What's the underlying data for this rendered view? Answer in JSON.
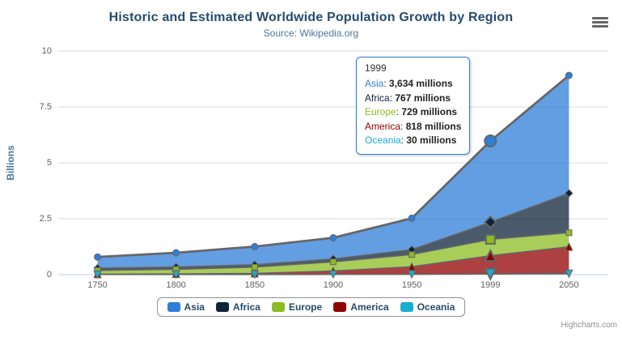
{
  "chart_data": {
    "type": "area",
    "stacking": "normal",
    "title": "Historic and Estimated Worldwide Population Growth by Region",
    "subtitle": "Source: Wikipedia.org",
    "ylabel": "Billions",
    "ylim": [
      0,
      10
    ],
    "yticks": [
      "0",
      "2.5",
      "5",
      "7.5",
      "10"
    ],
    "categories": [
      "1750",
      "1800",
      "1850",
      "1900",
      "1950",
      "1999",
      "2050"
    ],
    "values_unit": "millions",
    "grid": true,
    "legend_position": "bottom-center",
    "series": [
      {
        "name": "Asia",
        "color": "#2f7ed8",
        "marker": "circle",
        "values": [
          502,
          635,
          809,
          947,
          1402,
          3634,
          5268
        ]
      },
      {
        "name": "Africa",
        "color": "#0d233a",
        "marker": "diamond",
        "values": [
          106,
          107,
          111,
          133,
          221,
          767,
          1766
        ]
      },
      {
        "name": "Europe",
        "color": "#8bbc21",
        "marker": "square",
        "values": [
          163,
          203,
          276,
          408,
          547,
          729,
          628
        ]
      },
      {
        "name": "America",
        "color": "#910000",
        "marker": "triangle",
        "values": [
          18,
          31,
          54,
          156,
          339,
          818,
          1201
        ]
      },
      {
        "name": "Oceania",
        "color": "#1aadce",
        "marker": "triangle-down",
        "values": [
          2,
          2,
          2,
          6,
          13,
          30,
          46
        ]
      }
    ]
  },
  "tooltip": {
    "header": "1999",
    "hover_index": 5,
    "rows": [
      {
        "name": "Asia",
        "color": "#2f7ed8",
        "value": "3,634",
        "unit": "millions"
      },
      {
        "name": "Africa",
        "color": "#0d233a",
        "value": "767",
        "unit": "millions"
      },
      {
        "name": "Europe",
        "color": "#8bbc21",
        "value": "729",
        "unit": "millions"
      },
      {
        "name": "America",
        "color": "#910000",
        "value": "818",
        "unit": "millions"
      },
      {
        "name": "Oceania",
        "color": "#1aadce",
        "value": "30",
        "unit": "millions"
      }
    ]
  },
  "credits_label": "Highcharts.com",
  "colors": {
    "title": "#274b6d",
    "subtitle": "#4d759e",
    "axis_labels": "#606060",
    "axis_line": "#c0d0e0",
    "gridline": "#d8d8d8",
    "series_outline": "#666666",
    "legend_text": "#274b6d",
    "legend_border": "#909090",
    "credits": "#909090",
    "tooltip_border": "#2f7ed8"
  }
}
